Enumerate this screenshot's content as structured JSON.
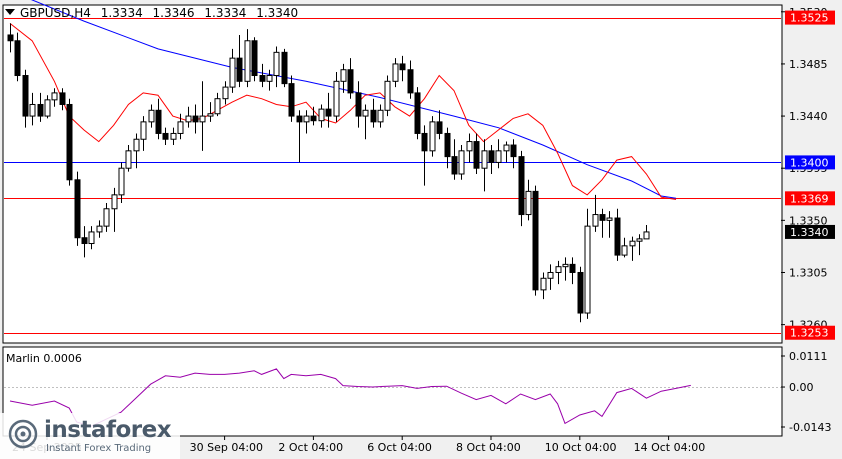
{
  "header": {
    "symbol": "GBPUSD,H4",
    "open": "1.3334",
    "high": "1.3346",
    "low": "1.3334",
    "close": "1.3340"
  },
  "indicator": {
    "name": "Marlin",
    "value": "0.0006"
  },
  "watermark": {
    "brand": "instaforex",
    "tagline": "Instant Forex Trading"
  },
  "colors": {
    "background": "#ffffff",
    "bull_candle": "#ffffff",
    "bear_candle": "#000000",
    "ma_fast": "#ff0000",
    "ma_slow": "#0000ff",
    "oscillator": "#9900aa",
    "resistance_line": "#ff0000",
    "support_line": "#ff0000",
    "level_line_blue": "#0000ff",
    "hline_label_bg_red": "#ff0000",
    "hline_label_bg_blue": "#0000ff"
  },
  "chart_data": {
    "type": "candlestick",
    "price_axis": {
      "min": 1.3245,
      "max": 1.3535,
      "ticks": [
        "1.3530",
        "1.3485",
        "1.3440",
        "1.3395",
        "1.3350",
        "1.3305",
        "1.3260"
      ]
    },
    "x_labels": [
      {
        "index": 5,
        "label": "24 Sep 2025"
      },
      {
        "index": 29,
        "label": "30 Sep 04:00"
      },
      {
        "index": 41,
        "label": "2 Oct 04:00"
      },
      {
        "index": 53,
        "label": "6 Oct 04:00"
      },
      {
        "index": 65,
        "label": "8 Oct 04:00"
      },
      {
        "index": 77,
        "label": "10 Oct 04:00"
      },
      {
        "index": 89,
        "label": "14 Oct 04:00"
      }
    ],
    "horizontal_lines": [
      {
        "price": 1.3525,
        "label": "1.3525",
        "color": "#ff0000"
      },
      {
        "price": 1.34,
        "label": "1.3400",
        "color": "#0000ff"
      },
      {
        "price": 1.3369,
        "label": "1.3369",
        "color": "#ff0000"
      },
      {
        "price": 1.3253,
        "label": "1.3253",
        "color": "#ff0000"
      }
    ],
    "current_price": {
      "price": 1.334,
      "label": "1.3340"
    },
    "candles": [
      [
        1.351,
        1.352,
        1.3495,
        1.3505
      ],
      [
        1.3505,
        1.3512,
        1.347,
        1.3475
      ],
      [
        1.3475,
        1.348,
        1.343,
        1.344
      ],
      [
        1.344,
        1.346,
        1.3432,
        1.345
      ],
      [
        1.345,
        1.346,
        1.3435,
        1.344
      ],
      [
        1.344,
        1.3458,
        1.3438,
        1.3454
      ],
      [
        1.3454,
        1.3464,
        1.3448,
        1.346
      ],
      [
        1.346,
        1.3464,
        1.3445,
        1.345
      ],
      [
        1.345,
        1.3455,
        1.338,
        1.3385
      ],
      [
        1.3385,
        1.3392,
        1.3328,
        1.3335
      ],
      [
        1.3335,
        1.3345,
        1.3318,
        1.333
      ],
      [
        1.333,
        1.3345,
        1.3325,
        1.334
      ],
      [
        1.334,
        1.335,
        1.3335,
        1.3345
      ],
      [
        1.3345,
        1.3365,
        1.334,
        1.336
      ],
      [
        1.336,
        1.3378,
        1.334,
        1.3372
      ],
      [
        1.3372,
        1.34,
        1.3365,
        1.3395
      ],
      [
        1.3395,
        1.3415,
        1.3392,
        1.341
      ],
      [
        1.341,
        1.3425,
        1.3395,
        1.342
      ],
      [
        1.342,
        1.344,
        1.341,
        1.3435
      ],
      [
        1.3435,
        1.345,
        1.343,
        1.3445
      ],
      [
        1.3445,
        1.3455,
        1.342,
        1.3425
      ],
      [
        1.3425,
        1.343,
        1.3415,
        1.342
      ],
      [
        1.342,
        1.343,
        1.3415,
        1.3425
      ],
      [
        1.3425,
        1.3442,
        1.342,
        1.3435
      ],
      [
        1.3435,
        1.3448,
        1.343,
        1.344
      ],
      [
        1.344,
        1.345,
        1.3425,
        1.3435
      ],
      [
        1.3435,
        1.347,
        1.341,
        1.344
      ],
      [
        1.344,
        1.3452,
        1.3435,
        1.3442
      ],
      [
        1.3442,
        1.346,
        1.344,
        1.3455
      ],
      [
        1.3455,
        1.347,
        1.345,
        1.3465
      ],
      [
        1.3465,
        1.3498,
        1.346,
        1.349
      ],
      [
        1.349,
        1.351,
        1.3465,
        1.347
      ],
      [
        1.347,
        1.3515,
        1.3465,
        1.3505
      ],
      [
        1.3505,
        1.3508,
        1.347,
        1.3475
      ],
      [
        1.3475,
        1.3485,
        1.3465,
        1.347
      ],
      [
        1.347,
        1.348,
        1.3462,
        1.3475
      ],
      [
        1.3475,
        1.35,
        1.3465,
        1.3495
      ],
      [
        1.3495,
        1.3498,
        1.3465,
        1.3468
      ],
      [
        1.3468,
        1.3475,
        1.3435,
        1.344
      ],
      [
        1.344,
        1.3445,
        1.34,
        1.3435
      ],
      [
        1.3435,
        1.3445,
        1.3425,
        1.344
      ],
      [
        1.344,
        1.3448,
        1.3432,
        1.3436
      ],
      [
        1.3436,
        1.345,
        1.343,
        1.3446
      ],
      [
        1.3446,
        1.346,
        1.343,
        1.344
      ],
      [
        1.344,
        1.3478,
        1.3435,
        1.347
      ],
      [
        1.347,
        1.3485,
        1.346,
        1.348
      ],
      [
        1.348,
        1.349,
        1.3455,
        1.346
      ],
      [
        1.346,
        1.347,
        1.343,
        1.344
      ],
      [
        1.344,
        1.345,
        1.342,
        1.3445
      ],
      [
        1.3445,
        1.3455,
        1.343,
        1.3435
      ],
      [
        1.3435,
        1.345,
        1.343,
        1.3445
      ],
      [
        1.3445,
        1.3475,
        1.344,
        1.347
      ],
      [
        1.347,
        1.349,
        1.3465,
        1.3485
      ],
      [
        1.3485,
        1.3492,
        1.347,
        1.348
      ],
      [
        1.348,
        1.3488,
        1.3455,
        1.346
      ],
      [
        1.346,
        1.3465,
        1.342,
        1.3425
      ],
      [
        1.3425,
        1.3432,
        1.338,
        1.341
      ],
      [
        1.341,
        1.344,
        1.3405,
        1.3435
      ],
      [
        1.3435,
        1.3445,
        1.342,
        1.3425
      ],
      [
        1.3425,
        1.343,
        1.3395,
        1.3405
      ],
      [
        1.3405,
        1.342,
        1.3385,
        1.339
      ],
      [
        1.339,
        1.3415,
        1.3385,
        1.341
      ],
      [
        1.341,
        1.3425,
        1.34,
        1.3418
      ],
      [
        1.3418,
        1.3425,
        1.339,
        1.3395
      ],
      [
        1.3395,
        1.342,
        1.3375,
        1.341
      ],
      [
        1.341,
        1.3415,
        1.339,
        1.34
      ],
      [
        1.34,
        1.342,
        1.3395,
        1.341
      ],
      [
        1.341,
        1.3418,
        1.34,
        1.3415
      ],
      [
        1.3415,
        1.342,
        1.3395,
        1.3405
      ],
      [
        1.3405,
        1.341,
        1.3345,
        1.3355
      ],
      [
        1.3355,
        1.3385,
        1.335,
        1.3375
      ],
      [
        1.3375,
        1.338,
        1.3285,
        1.329
      ],
      [
        1.329,
        1.3305,
        1.3282,
        1.33
      ],
      [
        1.33,
        1.3312,
        1.329,
        1.3305
      ],
      [
        1.3305,
        1.3315,
        1.3295,
        1.331
      ],
      [
        1.331,
        1.3318,
        1.3298,
        1.3312
      ],
      [
        1.3312,
        1.3318,
        1.3295,
        1.3305
      ],
      [
        1.3305,
        1.331,
        1.3262,
        1.327
      ],
      [
        1.327,
        1.336,
        1.3265,
        1.3345
      ],
      [
        1.3345,
        1.3372,
        1.334,
        1.3355
      ],
      [
        1.3355,
        1.336,
        1.3335,
        1.335
      ],
      [
        1.335,
        1.3358,
        1.3335,
        1.3352
      ],
      [
        1.3352,
        1.336,
        1.3315,
        1.332
      ],
      [
        1.332,
        1.3335,
        1.3318,
        1.3328
      ],
      [
        1.3328,
        1.3336,
        1.3315,
        1.3332
      ],
      [
        1.3332,
        1.3338,
        1.332,
        1.3334
      ],
      [
        1.3334,
        1.3346,
        1.3334,
        1.334
      ]
    ],
    "ma_slow": [
      [
        0,
        1.3548
      ],
      [
        10,
        1.3522
      ],
      [
        20,
        1.3498
      ],
      [
        30,
        1.3482
      ],
      [
        40,
        1.347
      ],
      [
        50,
        1.3456
      ],
      [
        60,
        1.344
      ],
      [
        66,
        1.343
      ],
      [
        72,
        1.3415
      ],
      [
        78,
        1.3398
      ],
      [
        84,
        1.3384
      ],
      [
        88,
        1.3371
      ],
      [
        90,
        1.3369
      ]
    ],
    "ma_fast": [
      [
        0,
        1.352
      ],
      [
        3,
        1.3505
      ],
      [
        6,
        1.347
      ],
      [
        8,
        1.344
      ],
      [
        10,
        1.3428
      ],
      [
        12,
        1.3418
      ],
      [
        14,
        1.3432
      ],
      [
        16,
        1.345
      ],
      [
        18,
        1.346
      ],
      [
        20,
        1.3458
      ],
      [
        22,
        1.344
      ],
      [
        24,
        1.3436
      ],
      [
        26,
        1.3438
      ],
      [
        28,
        1.3445
      ],
      [
        30,
        1.3452
      ],
      [
        32,
        1.3458
      ],
      [
        34,
        1.3455
      ],
      [
        36,
        1.345
      ],
      [
        38,
        1.3448
      ],
      [
        40,
        1.3452
      ],
      [
        42,
        1.3438
      ],
      [
        44,
        1.3434
      ],
      [
        46,
        1.3445
      ],
      [
        48,
        1.3458
      ],
      [
        50,
        1.346
      ],
      [
        52,
        1.3448
      ],
      [
        54,
        1.344
      ],
      [
        56,
        1.3455
      ],
      [
        58,
        1.3475
      ],
      [
        60,
        1.3462
      ],
      [
        62,
        1.3432
      ],
      [
        64,
        1.3418
      ],
      [
        66,
        1.3428
      ],
      [
        68,
        1.3438
      ],
      [
        70,
        1.3442
      ],
      [
        72,
        1.3432
      ],
      [
        74,
        1.3408
      ],
      [
        76,
        1.338
      ],
      [
        78,
        1.3372
      ],
      [
        80,
        1.3385
      ],
      [
        82,
        1.3402
      ],
      [
        84,
        1.3405
      ],
      [
        86,
        1.339
      ],
      [
        88,
        1.337
      ],
      [
        90,
        1.3368
      ]
    ],
    "oscillator": {
      "name": "Marlin",
      "ticks": [
        "0.0111",
        "0.00",
        "-0.0143"
      ],
      "range": [
        -0.0143,
        0.0111
      ],
      "points": [
        [
          0,
          -0.005
        ],
        [
          3,
          -0.0065
        ],
        [
          6,
          -0.005
        ],
        [
          8,
          -0.0075
        ],
        [
          9,
          -0.0125
        ],
        [
          11,
          -0.014
        ],
        [
          13,
          -0.0115
        ],
        [
          15,
          -0.009
        ],
        [
          17,
          -0.004
        ],
        [
          19,
          0.001
        ],
        [
          21,
          0.004
        ],
        [
          23,
          0.0035
        ],
        [
          25,
          0.005
        ],
        [
          27,
          0.0045
        ],
        [
          29,
          0.0045
        ],
        [
          31,
          0.005
        ],
        [
          33,
          0.0058
        ],
        [
          34,
          0.0045
        ],
        [
          36,
          0.0065
        ],
        [
          37,
          0.003
        ],
        [
          38,
          0.0045
        ],
        [
          40,
          0.004
        ],
        [
          42,
          0.0045
        ],
        [
          44,
          0.003
        ],
        [
          45,
          0.0005
        ],
        [
          47,
          0.0002
        ],
        [
          49,
          0.0
        ],
        [
          51,
          0.0003
        ],
        [
          53,
          0.0005
        ],
        [
          55,
          -0.0005
        ],
        [
          57,
          0.0002
        ],
        [
          59,
          0.0003
        ],
        [
          61,
          -0.0022
        ],
        [
          63,
          -0.0045
        ],
        [
          65,
          -0.003
        ],
        [
          67,
          -0.006
        ],
        [
          69,
          -0.0025
        ],
        [
          71,
          -0.0045
        ],
        [
          73,
          -0.0025
        ],
        [
          74,
          -0.006
        ],
        [
          75,
          -0.013
        ],
        [
          77,
          -0.01
        ],
        [
          79,
          -0.0085
        ],
        [
          80,
          -0.0105
        ],
        [
          82,
          -0.002
        ],
        [
          84,
          -0.0005
        ],
        [
          86,
          -0.004
        ],
        [
          88,
          -0.0015
        ],
        [
          90,
          -0.0005
        ],
        [
          92,
          0.0006
        ]
      ]
    }
  }
}
